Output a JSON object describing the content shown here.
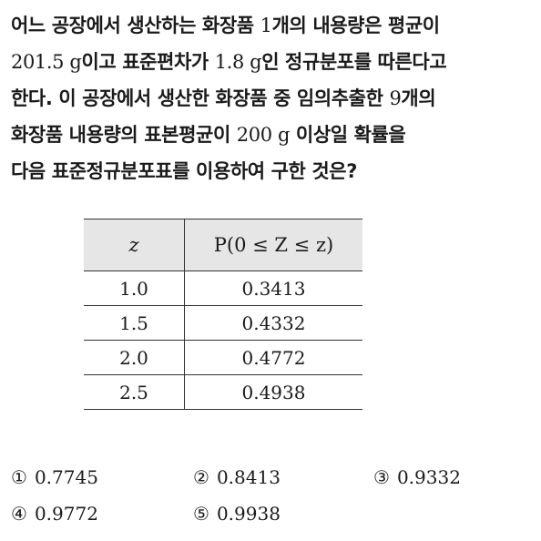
{
  "question": {
    "lines": [
      [
        {
          "t": "어느 공장에서 생산하는 화장품 ",
          "m": false
        },
        {
          "t": "1",
          "m": true
        },
        {
          "t": "개의 내용량은 평균이",
          "m": false
        }
      ],
      [
        {
          "t": "201.5 g",
          "m": true
        },
        {
          "t": "이고 표준편차가 ",
          "m": false
        },
        {
          "t": "1.8 g",
          "m": true
        },
        {
          "t": "인 정규분포를 따른다고",
          "m": false
        }
      ],
      [
        {
          "t": "한다. 이 공장에서 생산한 화장품 중 임의추출한 ",
          "m": false
        },
        {
          "t": "9",
          "m": true
        },
        {
          "t": "개의",
          "m": false
        }
      ],
      [
        {
          "t": "화장품 내용량의 표본평균이 ",
          "m": false
        },
        {
          "t": "200 g",
          "m": true
        },
        {
          "t": " 이상일 확률을",
          "m": false
        }
      ],
      [
        {
          "t": "다음 표준정규분포표를 이용하여 구한 것은?",
          "m": false
        }
      ]
    ]
  },
  "table": {
    "header_z": "z",
    "header_p": "P(0 ≤ Z ≤ z)",
    "rows": [
      {
        "z": "1.0",
        "p": "0.3413"
      },
      {
        "z": "1.5",
        "p": "0.4332"
      },
      {
        "z": "2.0",
        "p": "0.4772"
      },
      {
        "z": "2.5",
        "p": "0.4938"
      }
    ]
  },
  "choices": [
    {
      "num": "①",
      "value": "0.7745"
    },
    {
      "num": "②",
      "value": "0.8413"
    },
    {
      "num": "③",
      "value": "0.9332"
    },
    {
      "num": "④",
      "value": "0.9772"
    },
    {
      "num": "⑤",
      "value": "0.9938"
    }
  ]
}
